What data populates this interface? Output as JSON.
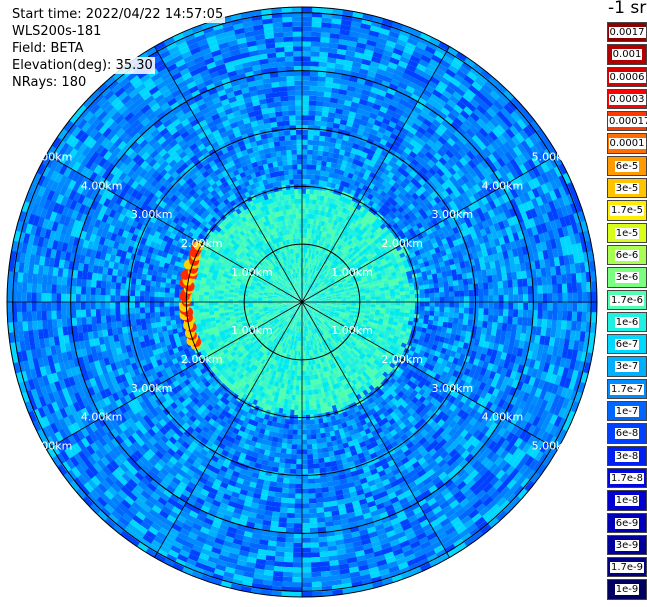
{
  "header": {
    "start_time": "Start time: 2022/04/22 14:57:05",
    "device": "WLS200s-181",
    "field": "Field: BETA",
    "elevation": "Elevation(deg): 35.30",
    "nrays": "NRays: 180"
  },
  "colorbar": {
    "unit": "-1 sr",
    "labels": [
      "0.0017",
      "0.001",
      "0.0006",
      "0.0003",
      "0.00017",
      "0.0001",
      "6e-5",
      "3e-5",
      "1.7e-5",
      "1e-5",
      "6e-6",
      "3e-6",
      "1.7e-6",
      "1e-6",
      "6e-7",
      "3e-7",
      "1.7e-7",
      "1e-7",
      "6e-8",
      "3e-8",
      "1.7e-8",
      "1e-8",
      "6e-9",
      "3e-9",
      "1.7e-9",
      "1e-9"
    ],
    "colors": [
      "#8b0000",
      "#b00000",
      "#d80000",
      "#ff0000",
      "#ff3a00",
      "#ff6e00",
      "#ff9a00",
      "#ffc400",
      "#ffee00",
      "#d8ff1a",
      "#a8ff50",
      "#7aff80",
      "#50ffb0",
      "#20f0e0",
      "#00d8ff",
      "#00b0ff",
      "#008cff",
      "#0066ff",
      "#0040ff",
      "#0020f0",
      "#0008e0",
      "#0000d0",
      "#0000b8",
      "#00009c",
      "#000080",
      "#000060"
    ]
  },
  "chart_data": {
    "type": "ppi_polar",
    "ring_labels": [
      "1.00km",
      "2.00km",
      "3.00km",
      "4.00km",
      "5.00km"
    ],
    "ring_ranges_km": [
      1,
      2,
      3,
      4,
      5
    ],
    "max_range_km": 5.1,
    "nrays": 180,
    "spoke_count": 12
  }
}
